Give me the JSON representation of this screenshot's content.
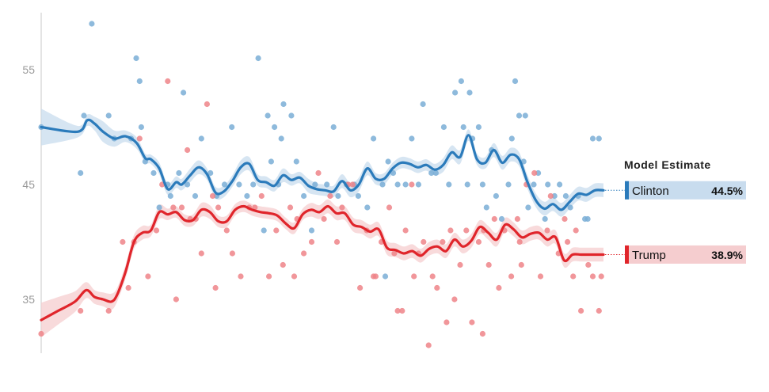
{
  "chart_data": {
    "type": "scatter",
    "title": "",
    "xlabel": "",
    "ylabel": "",
    "ylim": [
      30.5,
      60
    ],
    "yticks": [
      35,
      45,
      55
    ],
    "xlim": [
      0,
      100
    ],
    "grid": false,
    "legend_title": "Model Estimate",
    "series": [
      {
        "name": "Clinton",
        "value_label": "44.5%",
        "color": "#2b7bbb",
        "points_color": "#7aaed6",
        "band_color": "#c8dcee",
        "trend_x": [
          0,
          6.5,
          8.2,
          9.5,
          11,
          13,
          15,
          17,
          18.5,
          19.5,
          21,
          22.5,
          24,
          25,
          26.5,
          28,
          29.5,
          31,
          32.5,
          34,
          35.5,
          37,
          38.5,
          40,
          41.5,
          43,
          44.5,
          46,
          47.5,
          49,
          50.5,
          52,
          53.5,
          55,
          56.5,
          58,
          59.5,
          61,
          62.5,
          64,
          65.5,
          67,
          68.5,
          70,
          71.5,
          73,
          74.5,
          76,
          77.5,
          79,
          80.5,
          82,
          83.5,
          85,
          86.5,
          88,
          89.5,
          91,
          92.5,
          94,
          95.5,
          97,
          98.5,
          100
        ],
        "trend_y": [
          50,
          49.6,
          50.6,
          50.3,
          49.6,
          49,
          49.2,
          48.6,
          47.3,
          47.2,
          46.4,
          44.6,
          45.2,
          45,
          45.8,
          46.5,
          45.9,
          44.3,
          44.4,
          45.3,
          46.5,
          46.8,
          45.4,
          45.2,
          44.9,
          45.8,
          45.4,
          45.6,
          44.9,
          44.6,
          44.5,
          44.4,
          45.3,
          44.5,
          45,
          46.4,
          45.5,
          45.5,
          46.4,
          46.9,
          46.8,
          46.5,
          46.7,
          46.3,
          46.7,
          47.8,
          47.4,
          49.3,
          47.2,
          46.9,
          48,
          46.9,
          47.6,
          47.2,
          45.2,
          43.6,
          42.9,
          43.3,
          42.8,
          43.5,
          44.2,
          44.1,
          44.5,
          44.5
        ],
        "band_halfwidth": [
          1.6,
          0.5,
          0.5,
          0.6,
          0.9,
          0.7,
          0.5,
          0.5,
          0.4,
          0.4,
          0.5,
          0.5,
          0.5,
          0.5,
          0.6,
          0.6,
          0.5,
          0.5,
          0.5,
          0.5,
          0.6,
          0.6,
          0.5,
          0.5,
          0.5,
          0.6,
          0.5,
          0.5,
          0.6,
          0.5,
          0.5,
          0.5,
          0.6,
          0.6,
          0.6,
          0.6,
          0.5,
          0.5,
          0.5,
          0.5,
          0.5,
          0.5,
          0.5,
          0.5,
          0.6,
          0.6,
          0.6,
          0.5,
          0.5,
          0.5,
          0.6,
          0.6,
          0.6,
          0.6,
          0.6,
          0.6,
          0.6,
          0.6,
          0.6,
          0.6,
          0.6,
          0.6,
          0.6,
          0.6
        ],
        "points_x": [
          0,
          7,
          7.6,
          9,
          12,
          13,
          16,
          16.9,
          17.5,
          17.8,
          18.5,
          20,
          21,
          22.5,
          23,
          24.5,
          25.3,
          26,
          27.4,
          28.5,
          30.1,
          31.2,
          32.6,
          33.9,
          35.2,
          36.6,
          37.7,
          38.6,
          39.6,
          40.9,
          42.2,
          43.1,
          44.5,
          45.4,
          46.7,
          48.1,
          48.7,
          50.8,
          52,
          52.8,
          54.3,
          55.7,
          56.4,
          58,
          59.1,
          60.7,
          61.7,
          62.6,
          63.4,
          64.8,
          65.9,
          67.1,
          67.9,
          69.4,
          70.2,
          71.6,
          72.5,
          73.6,
          74.7,
          75.8,
          76.7,
          77.8,
          78.5,
          79.2,
          80.1,
          80.9,
          81.9,
          83.1,
          84.3,
          85,
          85.8,
          86.6,
          87.6,
          88.4,
          89.6,
          90.1,
          91.3,
          92.2,
          93.3,
          94.1,
          95.5,
          96.7,
          97.2,
          98.1,
          99.2,
          40.3,
          41.5,
          42.7,
          61.2,
          75.1,
          76.2,
          83.7,
          86.1
        ],
        "points_y": [
          50,
          46,
          51,
          59,
          51,
          49,
          49,
          56,
          54,
          50,
          47,
          46,
          43,
          45,
          44,
          46,
          53,
          45,
          44,
          49,
          46,
          44,
          45,
          50,
          45,
          44,
          45,
          56,
          41,
          47,
          45,
          52,
          51,
          47,
          44,
          41,
          45,
          45,
          50,
          44,
          45,
          45,
          44,
          43,
          49,
          45,
          47,
          46,
          45,
          45,
          49,
          45,
          52,
          46,
          46,
          50,
          45,
          53,
          54,
          45,
          49,
          50,
          45,
          43,
          48,
          44,
          42,
          45,
          54,
          51,
          47,
          43,
          45,
          46,
          42,
          45,
          44,
          45,
          44,
          43,
          44,
          42,
          42,
          49,
          49,
          51,
          50,
          49,
          37,
          50,
          53,
          49,
          51,
          43
        ]
      },
      {
        "name": "Trump",
        "value_label": "38.9%",
        "color": "#e0252b",
        "points_color": "#ef8488",
        "band_color": "#f5cdcf",
        "trend_x": [
          0,
          3,
          6,
          8,
          9.5,
          11,
          12.5,
          13.5,
          15,
          16.5,
          18,
          19.5,
          21,
          22.5,
          24,
          25.5,
          27,
          28.5,
          30,
          31.5,
          33,
          34.5,
          36,
          37.5,
          39,
          40.5,
          42,
          43.5,
          45,
          46.5,
          48,
          49.5,
          51,
          52.5,
          54,
          55.5,
          57,
          58.5,
          60,
          61.5,
          63,
          64.5,
          66,
          67.5,
          69,
          70.5,
          72,
          73.5,
          75,
          76.5,
          78,
          79.5,
          81,
          82.5,
          84,
          85.5,
          87,
          88.5,
          90,
          91.5,
          93,
          94.5,
          96,
          97.5,
          99,
          100
        ],
        "trend_y": [
          33.2,
          34,
          34.8,
          35.8,
          35.2,
          35,
          34.8,
          35.4,
          37.4,
          40,
          40.8,
          41,
          42.6,
          42.4,
          42.6,
          41.9,
          41.9,
          42.8,
          42.6,
          41.8,
          41.8,
          42.8,
          43.1,
          42.8,
          42.6,
          42.5,
          42.3,
          41.6,
          41.2,
          42.4,
          42.8,
          42.6,
          43.1,
          42.5,
          42.5,
          41.5,
          41.3,
          40.9,
          41.1,
          39.5,
          39.3,
          39,
          39.2,
          38.8,
          39.4,
          39.6,
          39.2,
          40.2,
          39.6,
          40.1,
          41.3,
          40.8,
          40.2,
          41.5,
          41.1,
          40.4,
          40.7,
          40.8,
          40.2,
          40.4,
          38.4,
          38.9,
          38.9,
          38.9,
          38.9,
          38.9
        ],
        "band_halfwidth": [
          1.5,
          1.2,
          0.9,
          0.7,
          0.6,
          0.6,
          0.7,
          0.6,
          0.6,
          0.6,
          0.6,
          0.5,
          0.6,
          0.5,
          0.5,
          0.5,
          0.5,
          0.6,
          0.6,
          0.5,
          0.5,
          0.5,
          0.5,
          0.5,
          0.5,
          0.5,
          0.5,
          0.5,
          0.5,
          0.5,
          0.6,
          0.6,
          0.6,
          0.6,
          0.6,
          0.6,
          0.6,
          0.6,
          0.6,
          0.6,
          0.6,
          0.6,
          0.6,
          0.6,
          0.6,
          0.6,
          0.6,
          0.6,
          0.6,
          0.6,
          0.6,
          0.6,
          0.6,
          0.6,
          0.6,
          0.6,
          0.6,
          0.6,
          0.6,
          0.6,
          0.6,
          0.6,
          0.6,
          0.6,
          0.6,
          0.6
        ],
        "points_x": [
          0,
          7,
          12,
          14.5,
          15.5,
          16.5,
          17.5,
          19,
          20.5,
          21.5,
          22.5,
          23.5,
          25,
          26,
          27.5,
          28.5,
          29.5,
          30.5,
          31.5,
          33,
          34,
          35.5,
          37,
          38,
          39.2,
          40.5,
          41.8,
          43,
          44.3,
          45.5,
          46.7,
          48.1,
          49.3,
          50.3,
          51.4,
          52.6,
          53.5,
          54.6,
          55.4,
          56.7,
          57.9,
          59.1,
          60.5,
          61.9,
          62.8,
          63.4,
          64.8,
          65.9,
          67.1,
          68,
          68.9,
          69.6,
          70.4,
          71.4,
          72.8,
          73.5,
          74.5,
          75.6,
          76.6,
          77.8,
          78.5,
          79.6,
          80.6,
          81.4,
          82.4,
          83.6,
          84.7,
          85.4,
          86.3,
          87.7,
          88.8,
          90,
          90.6,
          92,
          93.1,
          93.6,
          94.6,
          95.1,
          96,
          97.3,
          98.1,
          99.2,
          99.6,
          24,
          26.5,
          31,
          45,
          59.5,
          64.2,
          66.3,
          72.1,
          78.7,
          85.1
        ],
        "points_y": [
          32,
          34,
          34,
          40,
          36,
          40,
          49,
          37,
          41,
          45,
          54,
          43,
          43,
          48,
          42,
          39,
          52,
          44,
          43,
          41,
          39,
          37,
          43,
          43,
          44,
          37,
          41,
          38,
          43,
          42,
          39,
          40,
          46,
          42,
          44,
          40,
          43,
          45,
          45,
          36,
          41,
          37,
          40,
          43,
          39,
          34,
          41,
          45,
          39,
          40,
          31,
          37,
          36,
          40,
          41,
          35,
          38,
          41,
          33,
          40,
          32,
          38,
          42,
          36,
          41,
          37,
          42,
          38,
          45,
          46,
          37,
          41,
          44,
          39,
          42,
          40,
          37,
          41,
          34,
          38,
          37,
          34,
          37,
          35,
          42,
          36,
          37,
          37,
          34,
          37,
          33,
          41,
          40,
          36
        ]
      }
    ]
  }
}
